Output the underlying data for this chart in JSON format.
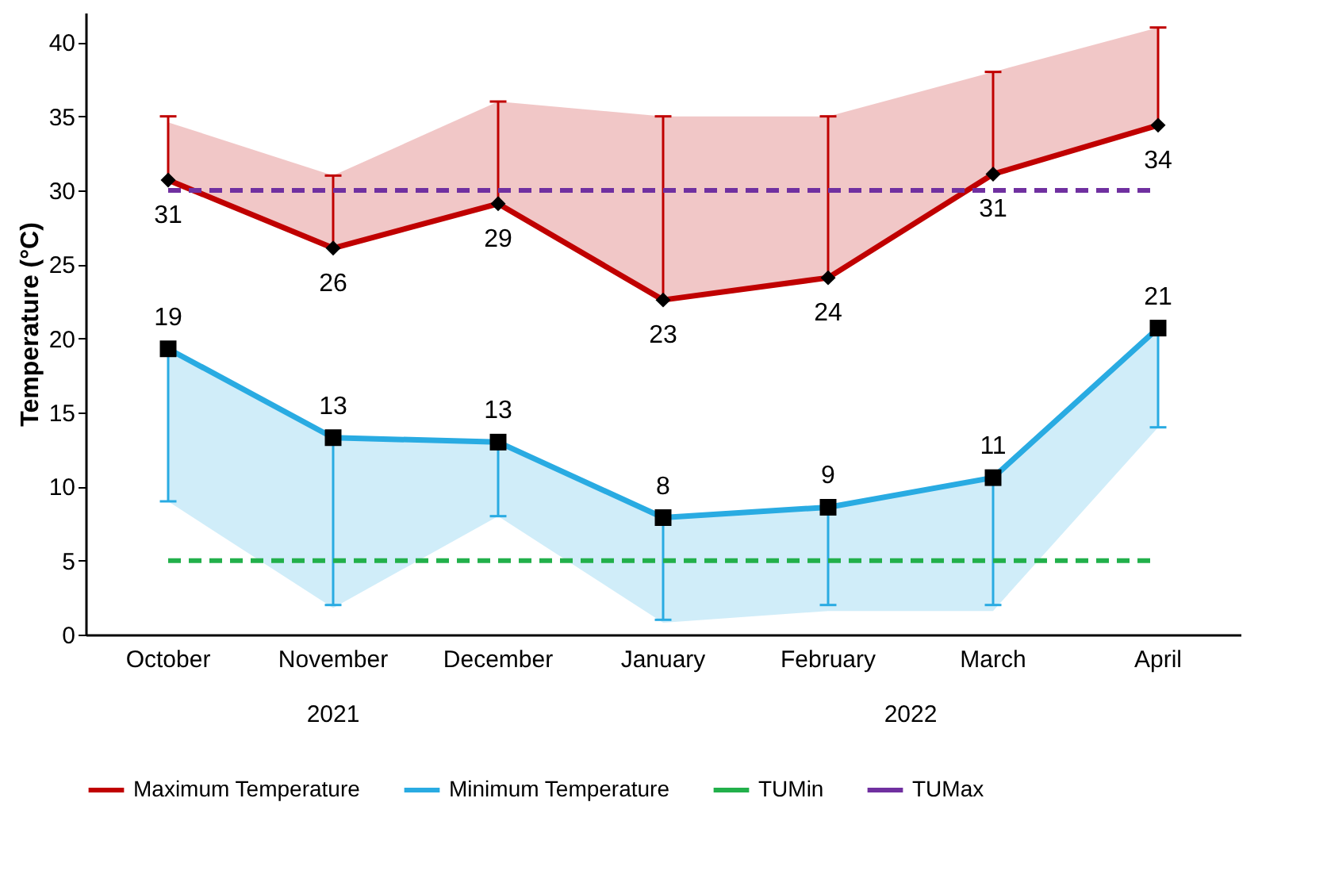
{
  "chart_data": {
    "type": "line",
    "ylabel": "Temperature (°C)",
    "categories": [
      "October",
      "November",
      "December",
      "January",
      "February",
      "March",
      "April"
    ],
    "series": [
      {
        "name": "Maximum Temperature",
        "color": "#c00000",
        "marker": "diamond",
        "values": [
          30.7,
          26.1,
          29.1,
          22.6,
          24.1,
          31.1,
          34.4
        ],
        "value_labels": [
          "31",
          "26",
          "29",
          "23",
          "24",
          "31",
          "34"
        ],
        "errors": [
          [
            30.7,
            35
          ],
          [
            26.1,
            31
          ],
          [
            29.1,
            36
          ],
          [
            22.6,
            35
          ],
          [
            24.1,
            35
          ],
          [
            31.1,
            38
          ],
          [
            34.4,
            41
          ]
        ],
        "lower": [
          30.7,
          26.1,
          29.1,
          22.6,
          24.1,
          31.1,
          34.4
        ],
        "upper": [
          34.6,
          31,
          36,
          35,
          35,
          38,
          41
        ]
      },
      {
        "name": "Minimum Temperature",
        "color": "#29abe2",
        "marker": "square",
        "values": [
          19.3,
          13.3,
          13.0,
          7.9,
          8.6,
          10.6,
          20.7
        ],
        "value_labels": [
          "19",
          "13",
          "13",
          "8",
          "9",
          "11",
          "21"
        ],
        "errors": [
          [
            9,
            19.3
          ],
          [
            2,
            13.3
          ],
          [
            8,
            13.0
          ],
          [
            1,
            7.9
          ],
          [
            2,
            8.6
          ],
          [
            2,
            10.6
          ],
          [
            14,
            20.7
          ]
        ],
        "lower": [
          9,
          1.8,
          8,
          0.8,
          1.6,
          1.6,
          14
        ],
        "upper": [
          19.3,
          13.3,
          13.0,
          7.9,
          8.6,
          10.6,
          20.7
        ]
      }
    ],
    "ref_lines": [
      {
        "axis": "y",
        "value": 5,
        "label": "TUMin",
        "color": "#22b04b",
        "line_style": "dashed"
      },
      {
        "axis": "y",
        "value": 30,
        "label": "TUMax",
        "color": "#7030a0",
        "line_style": "dashed"
      }
    ],
    "annotations": [
      "2021",
      "2022"
    ],
    "ylim": [
      0,
      42
    ],
    "yticks": [
      0,
      5,
      10,
      15,
      20,
      25,
      30,
      35,
      40
    ],
    "legend": "bottom",
    "grid": false
  }
}
